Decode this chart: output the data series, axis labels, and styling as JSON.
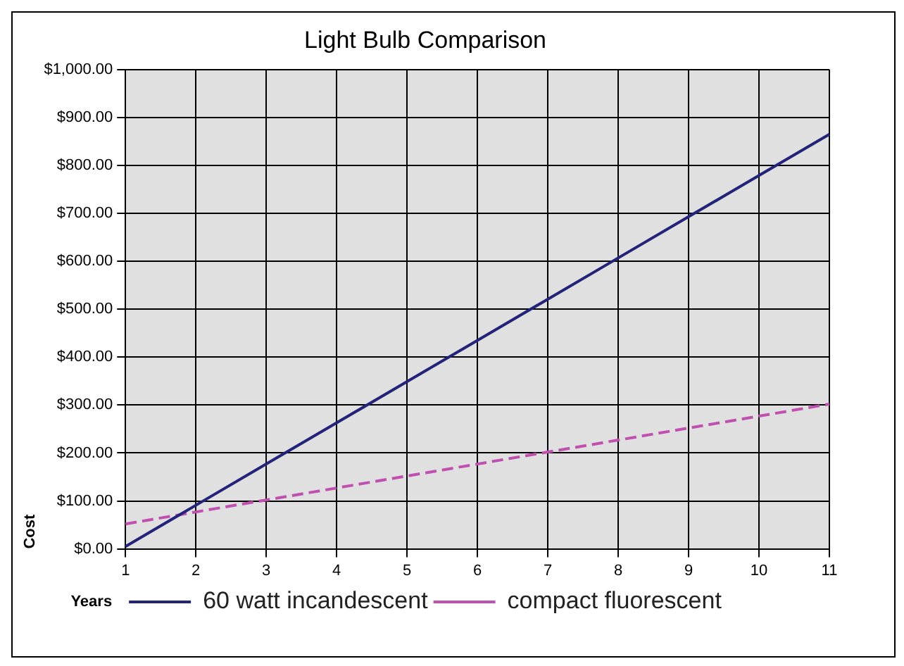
{
  "chart_data": {
    "type": "line",
    "title": "Light Bulb Comparison",
    "xlabel": "Years",
    "ylabel": "Cost",
    "categories": [
      "1",
      "2",
      "3",
      "4",
      "5",
      "6",
      "7",
      "8",
      "9",
      "10",
      "11"
    ],
    "series": [
      {
        "name": "60 watt incandescent",
        "color": "#23237a",
        "line_style": "solid",
        "values": [
          5,
          91,
          177,
          263,
          349,
          435,
          521,
          607,
          693,
          779,
          865
        ]
      },
      {
        "name": "compact fluorescent",
        "color": "#c050b0",
        "line_style": "dashed",
        "values": [
          52,
          77,
          102,
          127,
          152,
          177,
          202,
          227,
          252,
          277,
          302
        ]
      }
    ],
    "ylim": [
      0,
      1000
    ],
    "yticks": [
      {
        "value": 0,
        "label": "$0.00"
      },
      {
        "value": 100,
        "label": "$100.00"
      },
      {
        "value": 200,
        "label": "$200.00"
      },
      {
        "value": 300,
        "label": "$300.00"
      },
      {
        "value": 400,
        "label": "$400.00"
      },
      {
        "value": 500,
        "label": "$500.00"
      },
      {
        "value": 600,
        "label": "$600.00"
      },
      {
        "value": 700,
        "label": "$700.00"
      },
      {
        "value": 800,
        "label": "$800.00"
      },
      {
        "value": 900,
        "label": "$900.00"
      },
      {
        "value": 1000,
        "label": "$1,000.00"
      }
    ],
    "grid": true,
    "legend": "bottom",
    "marker": "none"
  }
}
